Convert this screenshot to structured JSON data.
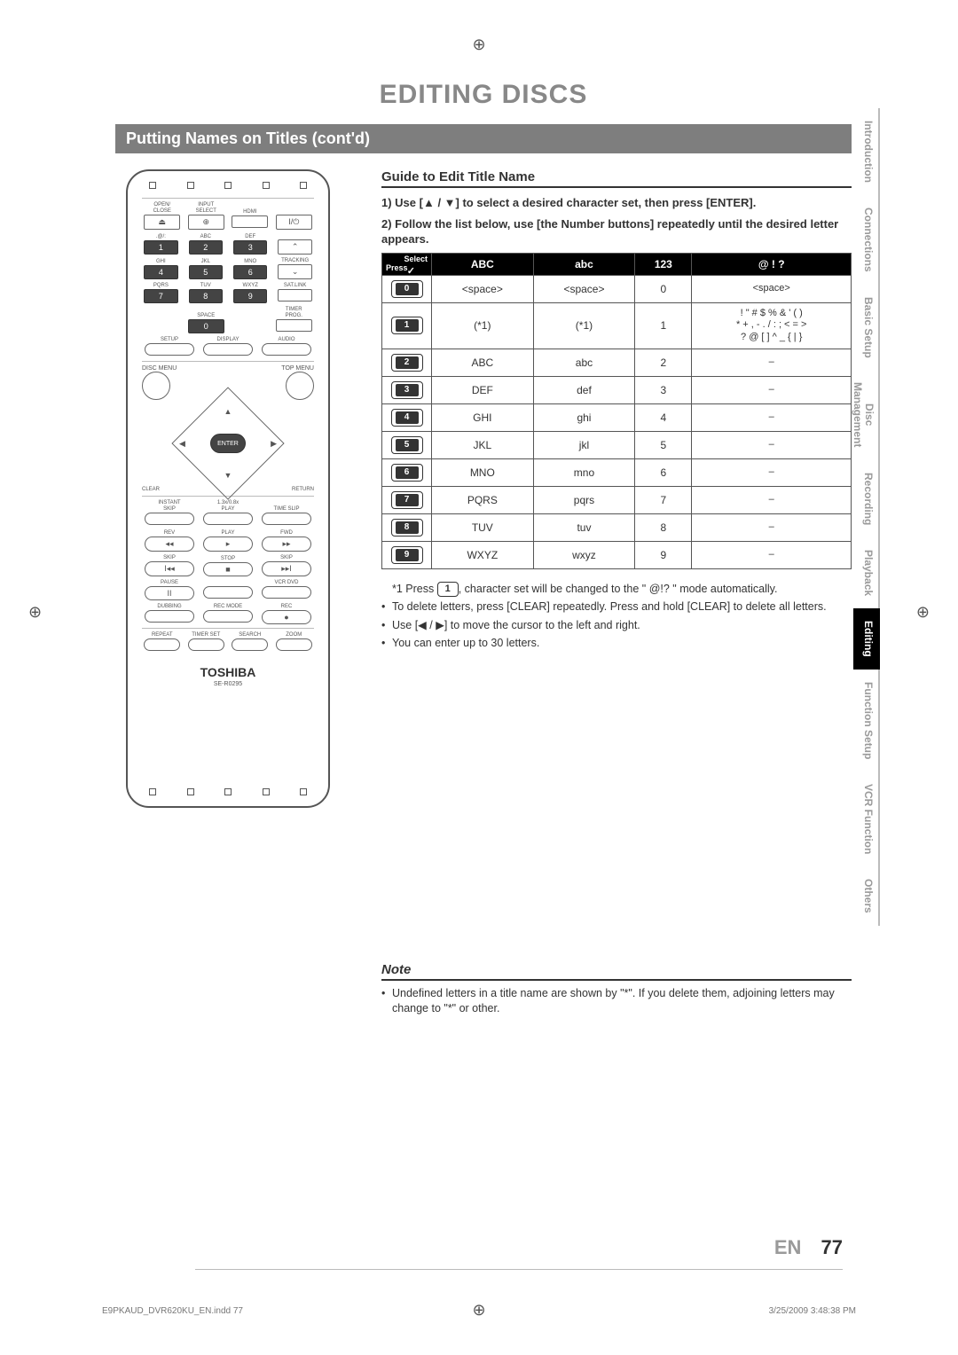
{
  "page": {
    "main_title": "EDITING DISCS",
    "section_bar": "Putting Names on Titles (cont'd)",
    "lang_code": "EN",
    "page_number": "77"
  },
  "remote": {
    "row1": [
      "OPEN/\nCLOSE",
      "INPUT\nSELECT",
      "HDMI",
      ""
    ],
    "row1b": [
      "⏏",
      "⊕",
      "",
      "I/⏻"
    ],
    "numpad_labels": [
      ".@/:",
      "ABC",
      "DEF",
      "",
      "GHI",
      "JKL",
      "MNO",
      "TRACKING",
      "PQRS",
      "TUV",
      "WXYZ",
      "SAT.LINK"
    ],
    "numpad": [
      "1",
      "2",
      "3",
      "⌃",
      "4",
      "5",
      "6",
      "⌄",
      "7",
      "8",
      "9",
      ""
    ],
    "space_row_labels": [
      "",
      "SPACE",
      "",
      "TIMER\nPROG."
    ],
    "space_row": [
      "",
      "0",
      "",
      ""
    ],
    "setup_row_labels": [
      "SETUP",
      "DISPLAY",
      "AUDIO"
    ],
    "disc_menu": "DISC MENU",
    "top_menu": "TOP MENU",
    "enter": "ENTER",
    "clear": "CLEAR",
    "return": "RETURN",
    "transport_labels1": [
      "INSTANT\nSKIP",
      "1.3x/0.8x\nPLAY",
      "TIME SLIP"
    ],
    "transport_labels2": [
      "REV",
      "PLAY",
      "FWD"
    ],
    "transport2": [
      "◂◂",
      "▸",
      "▸▸"
    ],
    "transport_labels3": [
      "SKIP",
      "STOP",
      "SKIP"
    ],
    "transport3": [
      "I◂◂",
      "■",
      "▸▸I"
    ],
    "pause_row_labels": [
      "PAUSE",
      "",
      "VCR  DVD"
    ],
    "pause_row": [
      "II",
      "",
      ""
    ],
    "dub_row_labels": [
      "DUBBING",
      "REC MODE",
      "REC"
    ],
    "dub_row": [
      "",
      "",
      "●"
    ],
    "last_row_labels": [
      "REPEAT",
      "TIMER SET",
      "SEARCH",
      "ZOOM"
    ],
    "brand": "TOSHIBA",
    "model": "SE-R0295"
  },
  "guide": {
    "title": "Guide to Edit Title Name",
    "step1": "1) Use [▲ / ▼] to select a desired character set, then press [ENTER].",
    "step2": "2) Follow the list below, use [the Number buttons] repeatedly until the desired letter appears."
  },
  "table": {
    "corner_select": "Select",
    "corner_press": "Press",
    "columns": [
      "ABC",
      "abc",
      "123",
      "@ ! ?"
    ],
    "rows": [
      {
        "key": "0",
        "cells": [
          "<space>",
          "<space>",
          "0",
          "<space>"
        ]
      },
      {
        "key": "1",
        "cells": [
          "(*1)",
          "(*1)",
          "1",
          "! \" # $ % & ' ( )\n* + , - . / : ; < = >\n? @ [ ] ^ _ { | }"
        ]
      },
      {
        "key": "2",
        "cells": [
          "ABC",
          "abc",
          "2",
          "–"
        ]
      },
      {
        "key": "3",
        "cells": [
          "DEF",
          "def",
          "3",
          "–"
        ]
      },
      {
        "key": "4",
        "cells": [
          "GHI",
          "ghi",
          "4",
          "–"
        ]
      },
      {
        "key": "5",
        "cells": [
          "JKL",
          "jkl",
          "5",
          "–"
        ]
      },
      {
        "key": "6",
        "cells": [
          "MNO",
          "mno",
          "6",
          "–"
        ]
      },
      {
        "key": "7",
        "cells": [
          "PQRS",
          "pqrs",
          "7",
          "–"
        ]
      },
      {
        "key": "8",
        "cells": [
          "TUV",
          "tuv",
          "8",
          "–"
        ]
      },
      {
        "key": "9",
        "cells": [
          "WXYZ",
          "wxyz",
          "9",
          "–"
        ]
      }
    ]
  },
  "notes": {
    "star1_a": "*1 Press ",
    "star1_key": "1",
    "star1_b": ", character set will be changed to the \" @!? \" mode automatically.",
    "b1": "To delete letters, press [CLEAR] repeatedly. Press and hold [CLEAR] to delete all letters.",
    "b2": "Use [◀ / ▶] to move the cursor to the left and right.",
    "b3": "You can enter up to 30 letters."
  },
  "notebox": {
    "title": "Note",
    "text": "Undefined letters in a title name are shown by \"*\". If you delete them, adjoining letters may change to \"*\" or other."
  },
  "tabs": [
    "Introduction",
    "Connections",
    "Basic Setup",
    "Disc Management",
    "Recording",
    "Playback",
    "Editing",
    "Function Setup",
    "VCR Function",
    "Others"
  ],
  "active_tab": "Editing",
  "print": {
    "left": "E9PKAUD_DVR620KU_EN.indd   77",
    "right": "3/25/2009   3:48:38 PM"
  }
}
